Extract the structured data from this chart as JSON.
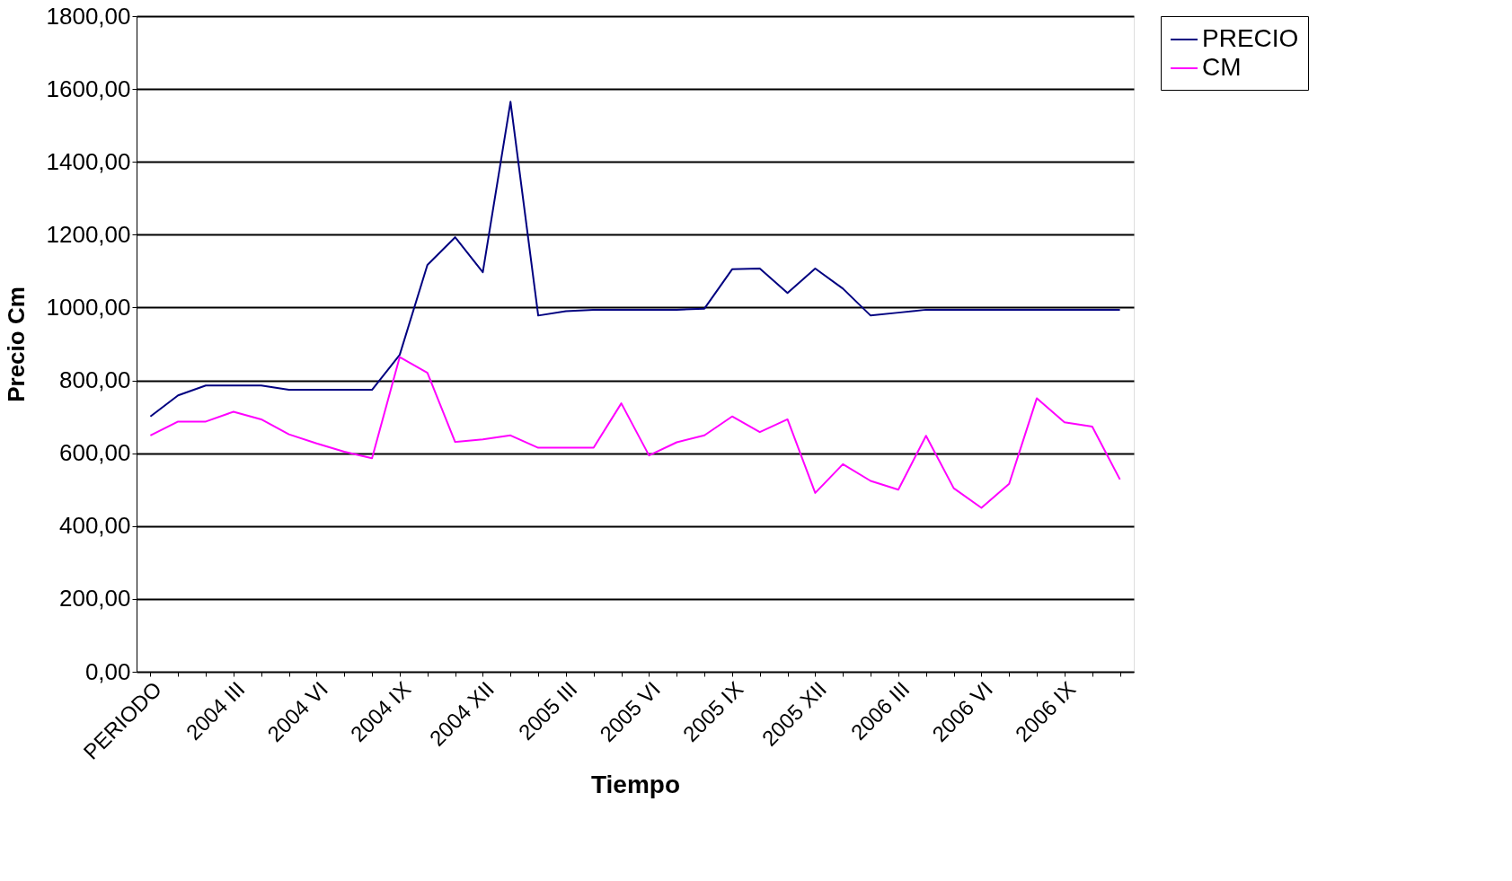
{
  "chart_data": {
    "type": "line",
    "xlabel": "Tiempo",
    "ylabel": "Precio Cm",
    "categories": [
      "PERIODO",
      null,
      null,
      "2004 III",
      null,
      null,
      "2004 VI",
      null,
      null,
      "2004 IX",
      null,
      null,
      "2004 XII",
      null,
      null,
      "2005 III",
      null,
      null,
      "2005 VI",
      null,
      null,
      "2005 IX",
      null,
      null,
      "2005 XII",
      null,
      null,
      "2006 III",
      null,
      null,
      "2006 VI",
      null,
      null,
      "2006 IX",
      null,
      null
    ],
    "series": [
      {
        "name": "PRECIO",
        "color": "#000080",
        "values": [
          701,
          759,
          786,
          786,
          786,
          774,
          774,
          774,
          774,
          870,
          1117,
          1193,
          1097,
          1565,
          978,
          990,
          994,
          994,
          994,
          994,
          997,
          1105,
          1107,
          1040,
          1107,
          1052,
          978,
          986,
          994,
          994,
          994,
          994,
          994,
          994,
          994,
          994
        ]
      },
      {
        "name": "CM",
        "color": "#ff00ff",
        "values": [
          649,
          687,
          687,
          714,
          693,
          652,
          627,
          604,
          586,
          864,
          821,
          631,
          638,
          649,
          615,
          615,
          615,
          737,
          594,
          630,
          649,
          701,
          658,
          693,
          491,
          570,
          524,
          500,
          648,
          504,
          450,
          516,
          751,
          685,
          673,
          528
        ]
      }
    ],
    "ylim": [
      0,
      1800
    ],
    "yticks": [
      {
        "value": 0,
        "label": "0,00"
      },
      {
        "value": 200,
        "label": "200,00"
      },
      {
        "value": 400,
        "label": "400,00"
      },
      {
        "value": 600,
        "label": "600,00"
      },
      {
        "value": 800,
        "label": "800,00"
      },
      {
        "value": 1000,
        "label": "1000,00"
      },
      {
        "value": 1200,
        "label": "1200,00"
      },
      {
        "value": 1400,
        "label": "1400,00"
      },
      {
        "value": 1600,
        "label": "1600,00"
      },
      {
        "value": 1800,
        "label": "1800,00"
      }
    ],
    "grid": "y",
    "legend": "right",
    "marker": "none",
    "line_style": "solid"
  }
}
